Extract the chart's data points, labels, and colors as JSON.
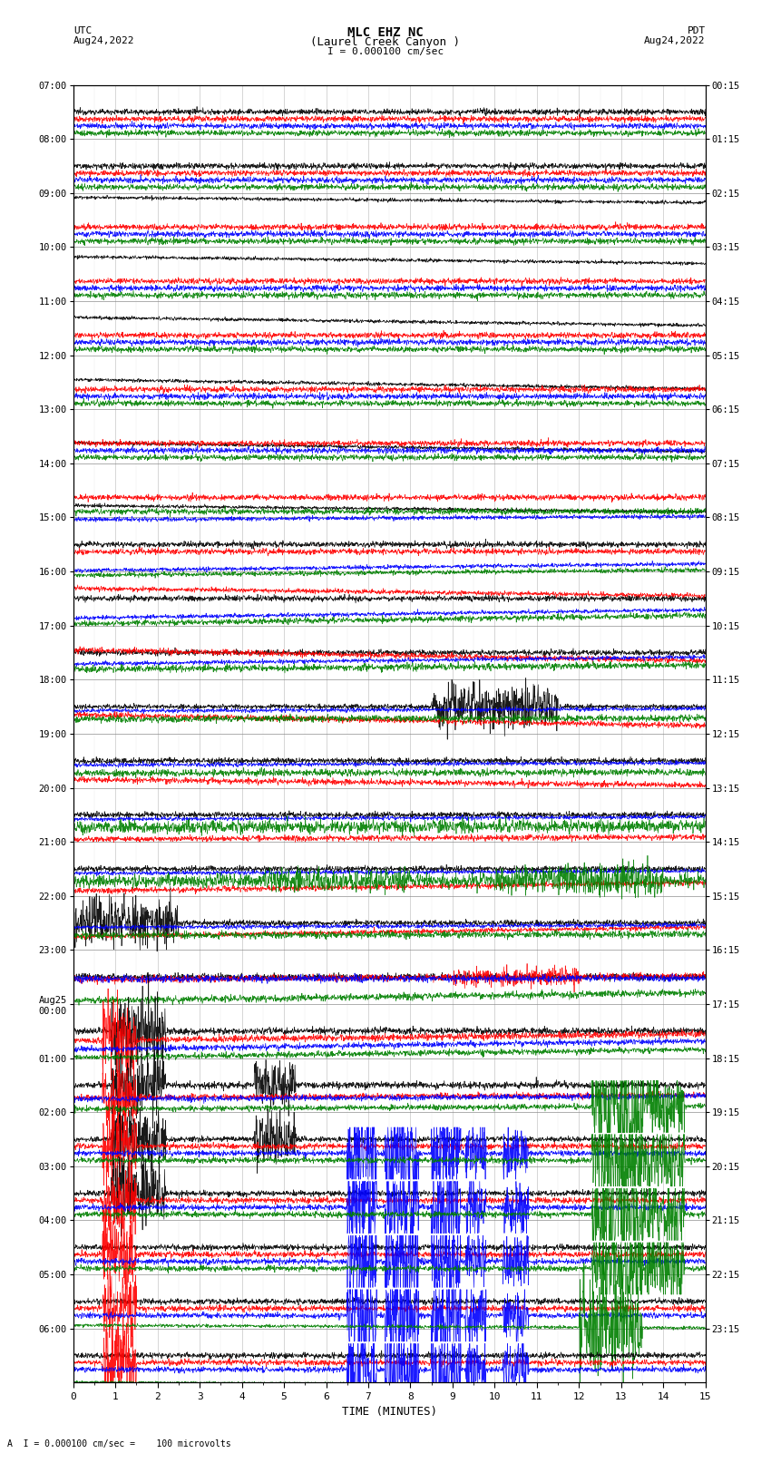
{
  "title_line1": "MLC EHZ NC",
  "title_line2": "(Laurel Creek Canyon )",
  "title_line3": "I = 0.000100 cm/sec",
  "left_header_top": "UTC",
  "left_header_date": "Aug24,2022",
  "right_header_top": "PDT",
  "right_header_date": "Aug24,2022",
  "xlabel": "TIME (MINUTES)",
  "footer": "A  I = 0.000100 cm/sec =    100 microvolts",
  "utc_labels": [
    "07:00",
    "08:00",
    "09:00",
    "10:00",
    "11:00",
    "12:00",
    "13:00",
    "14:00",
    "15:00",
    "16:00",
    "17:00",
    "18:00",
    "19:00",
    "20:00",
    "21:00",
    "22:00",
    "23:00",
    "Aug25\n00:00",
    "01:00",
    "02:00",
    "03:00",
    "04:00",
    "05:00",
    "06:00"
  ],
  "pdt_labels": [
    "00:15",
    "01:15",
    "02:15",
    "03:15",
    "04:15",
    "05:15",
    "06:15",
    "07:15",
    "08:15",
    "09:15",
    "10:15",
    "11:15",
    "12:15",
    "13:15",
    "14:15",
    "15:15",
    "16:15",
    "17:15",
    "18:15",
    "19:15",
    "20:15",
    "21:15",
    "22:15",
    "23:15"
  ],
  "x_min": 0,
  "x_max": 15,
  "background_color": "#ffffff",
  "grid_major_color": "#888888",
  "grid_minor_color": "#cccccc",
  "n_rows": 24
}
